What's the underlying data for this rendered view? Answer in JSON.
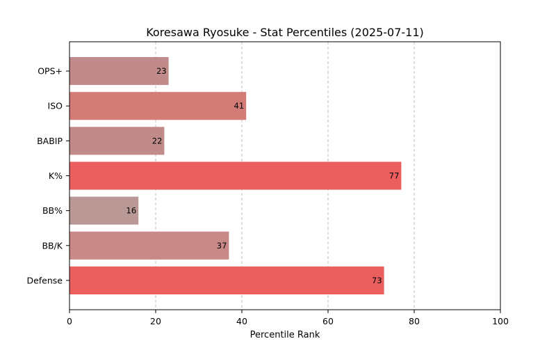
{
  "chart_data": {
    "type": "bar",
    "orientation": "horizontal",
    "title": "Koresawa Ryosuke - Stat Percentiles (2025-07-11)",
    "xlabel": "Percentile Rank",
    "ylabel": "",
    "xlim": [
      0,
      100
    ],
    "xticks": [
      "0",
      "20",
      "40",
      "60",
      "80",
      "100"
    ],
    "grid": "x-dashed",
    "categories": [
      "OPS+",
      "ISO",
      "BABIP",
      "K%",
      "BB%",
      "BB/K",
      "Defense"
    ],
    "values": [
      23,
      41,
      22,
      77,
      16,
      37,
      73
    ],
    "colors": [
      "#c08b8a",
      "#d27b77",
      "#c08b89",
      "#ec5f5f",
      "#b99896",
      "#c88987",
      "#ec5f5f"
    ]
  }
}
